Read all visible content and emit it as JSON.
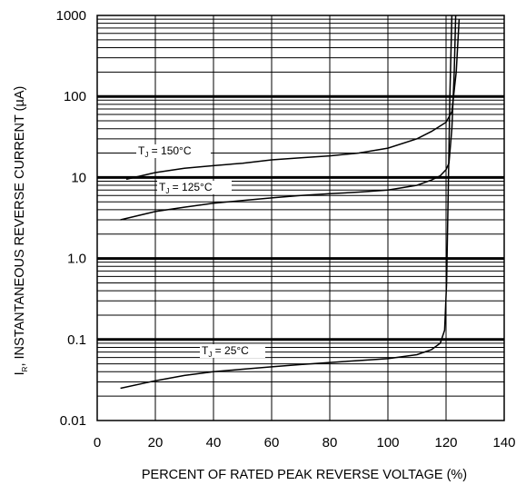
{
  "chart_data": {
    "type": "line",
    "title": "",
    "xlabel": "PERCENT OF RATED PEAK REVERSE VOLTAGE (%)",
    "ylabel": {
      "symbol": "I",
      "subscript": "R",
      "rest": ", INSTANTANEOUS REVERSE CURRENT (µA)"
    },
    "xlim": [
      0,
      140
    ],
    "ylim": [
      0.01,
      1000
    ],
    "yscale": "log",
    "grid": true,
    "x_ticks": [
      0,
      20,
      40,
      60,
      80,
      100,
      120,
      140
    ],
    "x_tick_labels": [
      "0",
      "20",
      "40",
      "60",
      "80",
      "100",
      "120",
      "140"
    ],
    "y_ticks": [
      0.01,
      0.1,
      1.0,
      10,
      100,
      1000
    ],
    "y_tick_labels": [
      "0.01",
      "0.1",
      "1.0",
      "10",
      "100",
      "1000"
    ],
    "series": [
      {
        "label": {
          "prefix": "T",
          "sub": "J",
          "suffix": " = 150°C"
        },
        "x": [
          10,
          20,
          30,
          40,
          50,
          60,
          70,
          80,
          90,
          100,
          110,
          115,
          120,
          122,
          123.5,
          124.5
        ],
        "y": [
          9.5,
          11.5,
          13,
          14,
          15,
          16.5,
          17.5,
          18.5,
          20,
          23,
          30,
          37,
          48,
          65,
          200,
          900
        ]
      },
      {
        "label": {
          "prefix": "T",
          "sub": "J",
          "suffix": " = 125°C"
        },
        "x": [
          8,
          20,
          30,
          40,
          50,
          60,
          70,
          80,
          90,
          100,
          110,
          115,
          118,
          120,
          121,
          122,
          122.8,
          123.3
        ],
        "y": [
          3.0,
          3.8,
          4.3,
          4.8,
          5.2,
          5.6,
          6.0,
          6.3,
          6.6,
          7.0,
          8.0,
          9.3,
          10.5,
          12.5,
          15,
          40,
          200,
          1000
        ]
      },
      {
        "label": {
          "prefix": "T",
          "sub": "J",
          "suffix": " = 25°C"
        },
        "x": [
          8,
          20,
          30,
          40,
          50,
          60,
          70,
          80,
          90,
          100,
          110,
          115,
          118,
          119.5,
          120.2,
          120.7,
          121.3,
          122
        ],
        "y": [
          0.025,
          0.031,
          0.036,
          0.04,
          0.043,
          0.046,
          0.049,
          0.052,
          0.055,
          0.058,
          0.065,
          0.075,
          0.09,
          0.13,
          0.5,
          5,
          100,
          1000
        ]
      }
    ]
  }
}
